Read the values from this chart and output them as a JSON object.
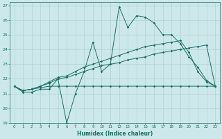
{
  "xlabel": "Humidex (Indice chaleur)",
  "xlim": [
    -0.5,
    23.5
  ],
  "ylim": [
    19,
    27.2
  ],
  "yticks": [
    19,
    20,
    21,
    22,
    23,
    24,
    25,
    26,
    27
  ],
  "xticks": [
    0,
    1,
    2,
    3,
    4,
    5,
    6,
    7,
    8,
    9,
    10,
    11,
    12,
    13,
    14,
    15,
    16,
    17,
    18,
    19,
    20,
    21,
    22,
    23
  ],
  "bg_color": "#cce8ea",
  "grid_color": "#aacdd0",
  "line_color": "#1a6e64",
  "series1_x": [
    0,
    1,
    2,
    3,
    4,
    5,
    6,
    7,
    8,
    9,
    10,
    11,
    12,
    13,
    14,
    15,
    16,
    17,
    18,
    19,
    20,
    21,
    22,
    23
  ],
  "series1_y": [
    21.5,
    21.1,
    21.1,
    21.3,
    21.3,
    22.0,
    19.0,
    21.0,
    22.5,
    24.5,
    22.5,
    23.0,
    26.9,
    25.5,
    26.3,
    26.2,
    25.8,
    25.0,
    25.0,
    24.4,
    23.5,
    22.8,
    21.9,
    21.5
  ],
  "series2_x": [
    0,
    1,
    2,
    3,
    4,
    5,
    6,
    7,
    8,
    9,
    10,
    11,
    12,
    13,
    14,
    15,
    16,
    17,
    18,
    19,
    20,
    21,
    22,
    23
  ],
  "series2_y": [
    21.5,
    21.2,
    21.3,
    21.5,
    21.8,
    22.1,
    22.2,
    22.5,
    22.8,
    23.0,
    23.2,
    23.4,
    23.6,
    23.8,
    24.0,
    24.2,
    24.3,
    24.4,
    24.5,
    24.6,
    23.8,
    22.5,
    21.8,
    21.5
  ],
  "series3_x": [
    0,
    1,
    2,
    3,
    4,
    5,
    6,
    7,
    8,
    9,
    10,
    11,
    12,
    13,
    14,
    15,
    16,
    17,
    18,
    19,
    20,
    21,
    22,
    23
  ],
  "series3_y": [
    21.5,
    21.2,
    21.3,
    21.5,
    21.7,
    22.0,
    22.1,
    22.3,
    22.5,
    22.7,
    22.9,
    23.0,
    23.1,
    23.3,
    23.4,
    23.5,
    23.7,
    23.8,
    23.9,
    24.0,
    24.1,
    24.2,
    24.3,
    21.5
  ],
  "series4_x": [
    0,
    1,
    2,
    3,
    4,
    5,
    6,
    7,
    8,
    9,
    10,
    11,
    12,
    13,
    14,
    15,
    16,
    17,
    18,
    19,
    20,
    21,
    22,
    23
  ],
  "series4_y": [
    21.5,
    21.2,
    21.3,
    21.4,
    21.5,
    21.5,
    21.5,
    21.5,
    21.5,
    21.5,
    21.5,
    21.5,
    21.5,
    21.5,
    21.5,
    21.5,
    21.5,
    21.5,
    21.5,
    21.5,
    21.5,
    21.5,
    21.5,
    21.5
  ]
}
